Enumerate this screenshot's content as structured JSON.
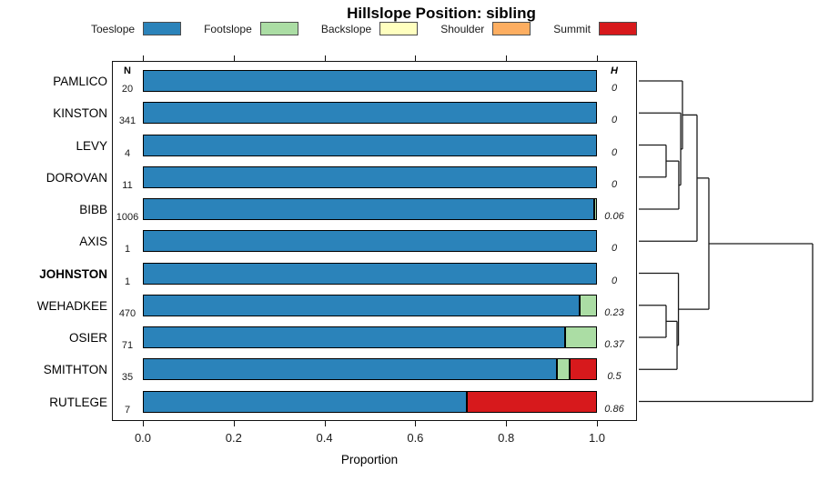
{
  "title": "Hillslope Position: sibling",
  "legend": {
    "items": [
      {
        "label": "Toeslope",
        "color": "#2B83BA"
      },
      {
        "label": "Footslope",
        "color": "#ABDDA4"
      },
      {
        "label": "Backslope",
        "color": "#FFFFBF"
      },
      {
        "label": "Shoulder",
        "color": "#FDAE61"
      },
      {
        "label": "Summit",
        "color": "#D7191C"
      }
    ]
  },
  "columns": {
    "n_header": "N",
    "h_header": "H"
  },
  "chart_data": {
    "type": "stacked-bar-horizontal",
    "title": "Hillslope Position: sibling",
    "xlabel": "Proportion",
    "xlim": [
      0,
      1
    ],
    "x_ticks": [
      {
        "v": 0.0,
        "label": "0.0"
      },
      {
        "v": 0.2,
        "label": "0.2"
      },
      {
        "v": 0.4,
        "label": "0.4"
      },
      {
        "v": 0.6,
        "label": "0.6"
      },
      {
        "v": 0.8,
        "label": "0.8"
      },
      {
        "v": 1.0,
        "label": "1.0"
      }
    ],
    "categories": [
      "PAMLICO",
      "KINSTON",
      "LEVY",
      "DOROVAN",
      "BIBB",
      "AXIS",
      "JOHNSTON",
      "WEHADKEE",
      "OSIER",
      "SMITHTON",
      "RUTLEGE"
    ],
    "bold_category": "JOHNSTON",
    "n_values": [
      "20",
      "341",
      "4",
      "11",
      "1006",
      "1",
      "1",
      "470",
      "71",
      "35",
      "7"
    ],
    "h_values": [
      "0",
      "0",
      "0",
      "0",
      "0.06",
      "0",
      "0",
      "0.23",
      "0.37",
      "0.5",
      "0.86"
    ],
    "series": [
      {
        "name": "Toeslope",
        "color": "#2B83BA",
        "values": [
          1,
          1,
          1,
          1,
          0.993,
          1,
          1,
          0.962,
          0.93,
          0.912,
          0.714
        ]
      },
      {
        "name": "Footslope",
        "color": "#ABDDA4",
        "values": [
          0,
          0,
          0,
          0,
          0.007,
          0,
          0,
          0.038,
          0.07,
          0.028,
          0
        ]
      },
      {
        "name": "Backslope",
        "color": "#FFFFBF",
        "values": [
          0,
          0,
          0,
          0,
          0,
          0,
          0,
          0,
          0,
          0,
          0
        ]
      },
      {
        "name": "Shoulder",
        "color": "#FDAE61",
        "values": [
          0,
          0,
          0,
          0,
          0,
          0,
          0,
          0,
          0,
          0,
          0
        ]
      },
      {
        "name": "Summit",
        "color": "#D7191C",
        "values": [
          0,
          0,
          0,
          0,
          0,
          0,
          0,
          0,
          0,
          0.06,
          0.286
        ]
      }
    ],
    "dendrogram": {
      "note": "heights are fractions of dendrogram width; leaves L0..L10 are categories top-to-bottom",
      "merges": [
        {
          "id": "M1",
          "a": "L2",
          "b": "L3",
          "h": 0.157
        },
        {
          "id": "M2",
          "a": "M1",
          "b": "L4",
          "h": 0.23
        },
        {
          "id": "M3",
          "a": "L1",
          "b": "M2",
          "h": 0.241
        },
        {
          "id": "M4",
          "a": "L0",
          "b": "M3",
          "h": 0.251
        },
        {
          "id": "M5",
          "a": "M4",
          "b": "L5",
          "h": 0.335
        },
        {
          "id": "Mb1",
          "a": "L7",
          "b": "L8",
          "h": 0.157
        },
        {
          "id": "Mb2",
          "a": "Mb1",
          "b": "L9",
          "h": 0.22
        },
        {
          "id": "Mb3",
          "a": "L6",
          "b": "Mb2",
          "h": 0.228
        },
        {
          "id": "M6",
          "a": "M5",
          "b": "Mb3",
          "h": 0.403
        },
        {
          "id": "ROOT",
          "a": "M6",
          "b": "L10",
          "h": 1.0
        }
      ]
    }
  }
}
